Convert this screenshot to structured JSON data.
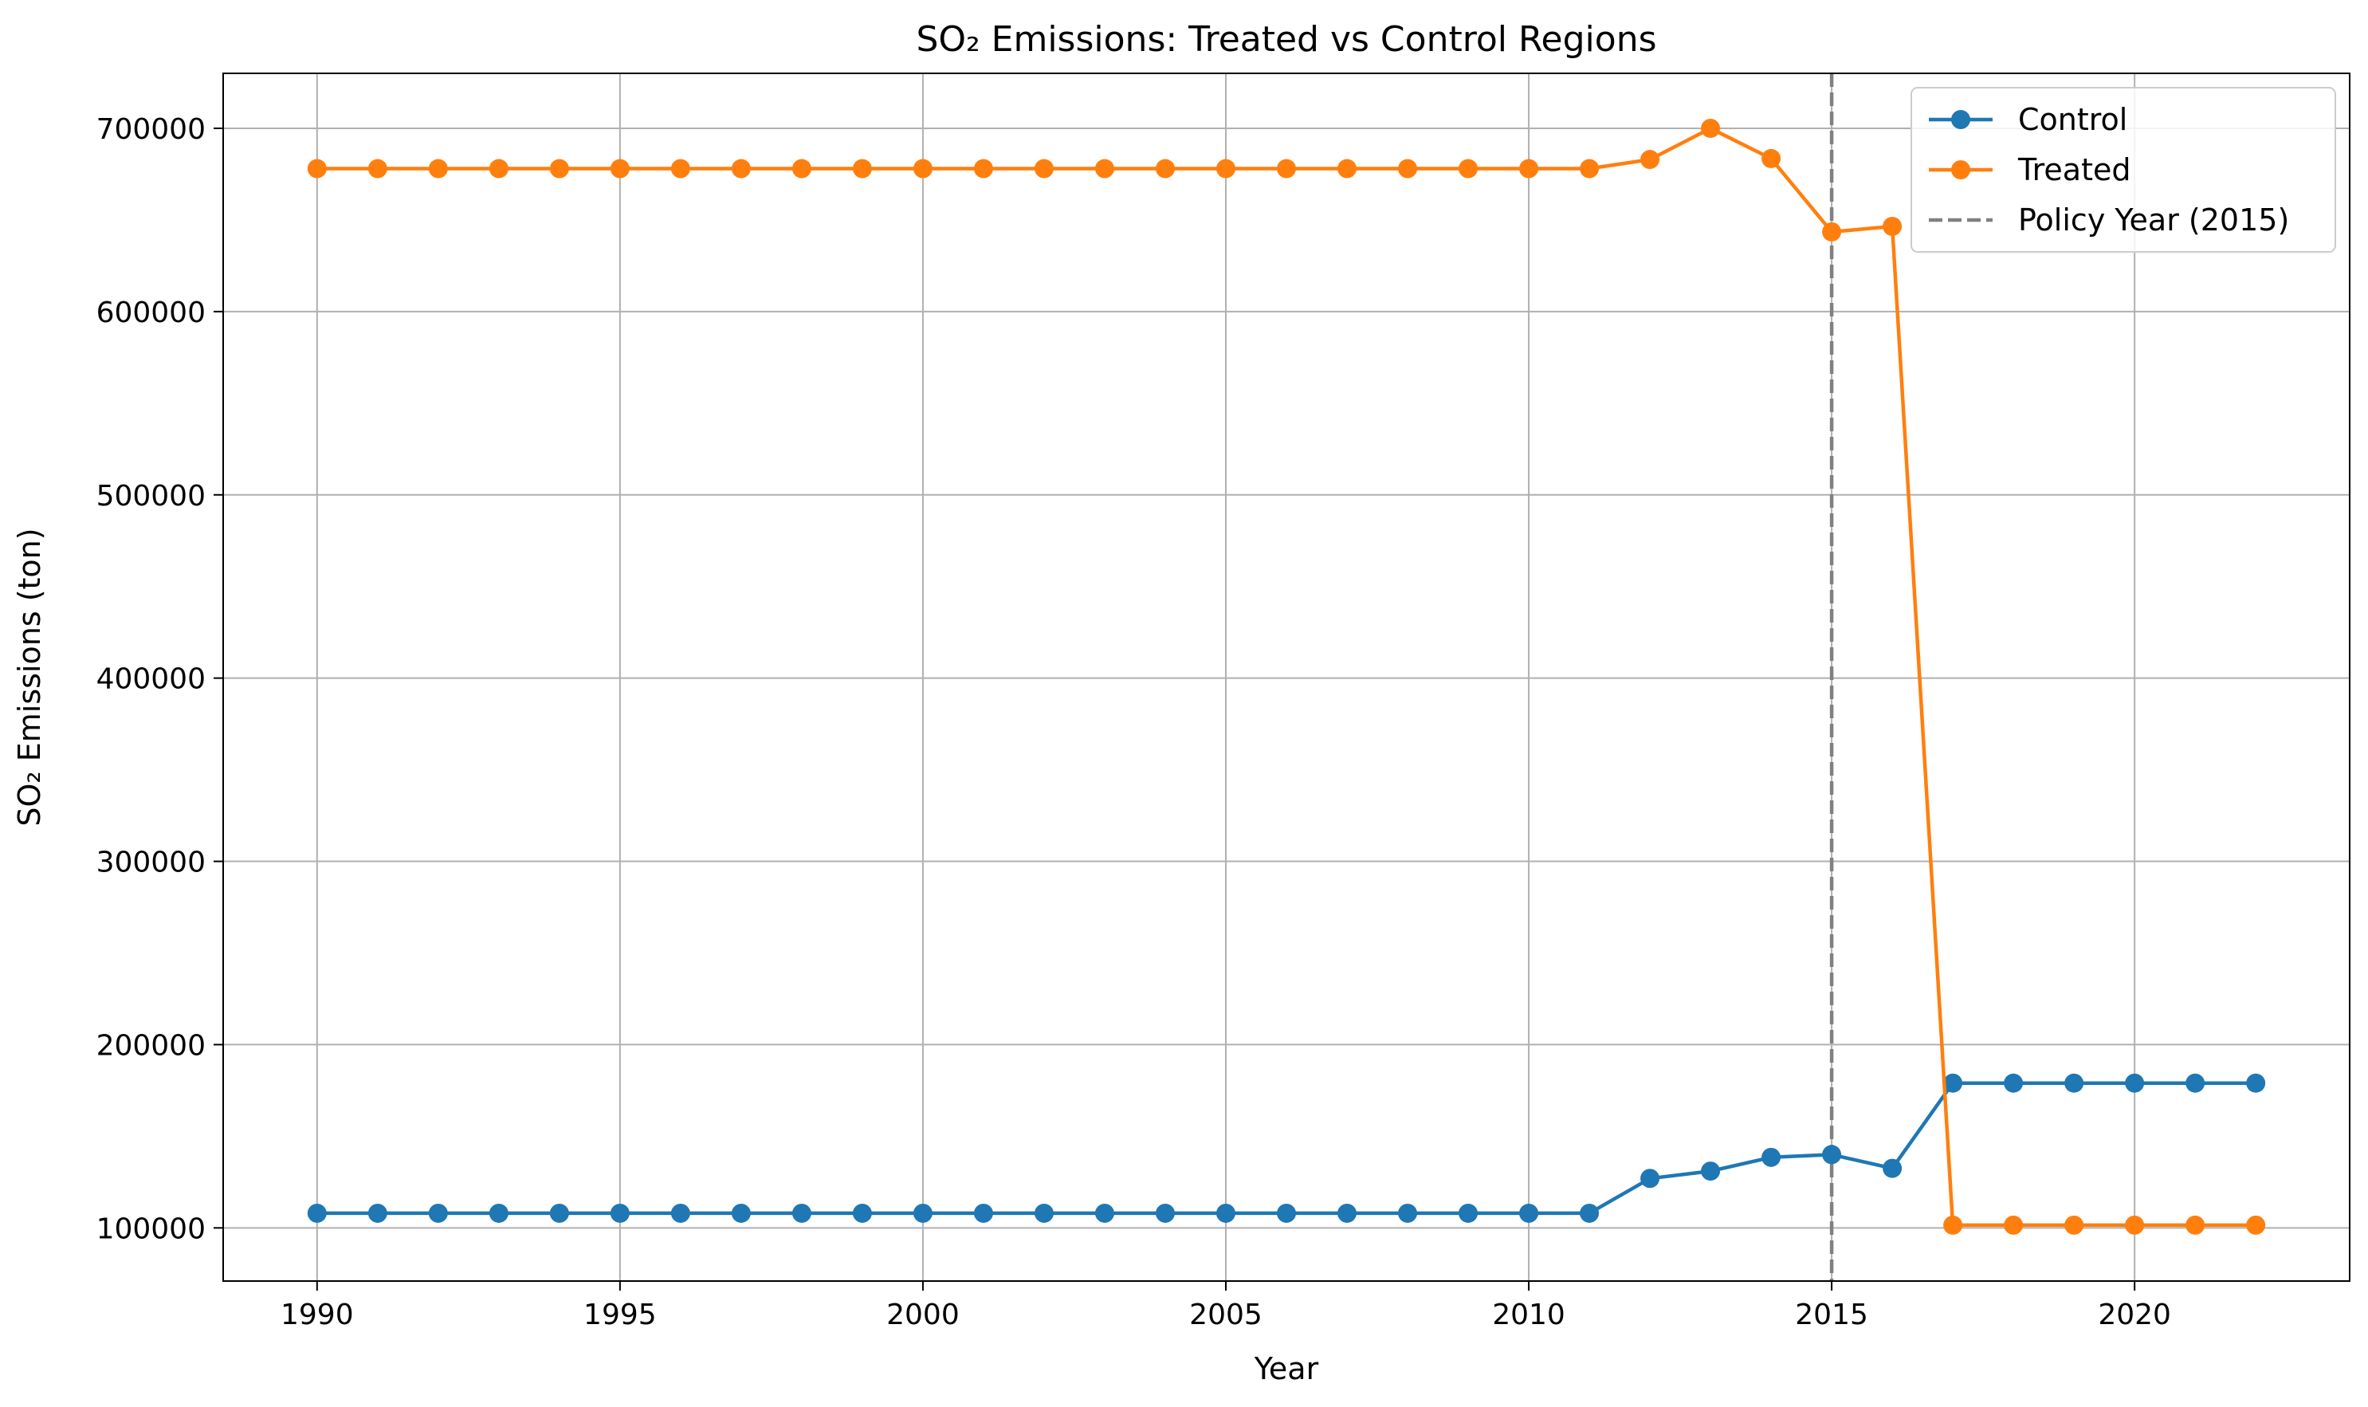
{
  "chart_data": {
    "type": "line",
    "title": "SO₂ Emissions: Treated vs Control Regions",
    "xlabel": "Year",
    "ylabel": "SO₂ Emissions (ton)",
    "xlim": [
      1988.45,
      2023.55
    ],
    "ylim": [
      71000,
      730000
    ],
    "xticks": [
      1990,
      1995,
      2000,
      2005,
      2010,
      2015,
      2020
    ],
    "yticks": [
      100000,
      200000,
      300000,
      400000,
      500000,
      600000,
      700000
    ],
    "grid": true,
    "legend_position": "top-right",
    "x": [
      1990,
      1991,
      1992,
      1993,
      1994,
      1995,
      1996,
      1997,
      1998,
      1999,
      2000,
      2001,
      2002,
      2003,
      2004,
      2005,
      2006,
      2007,
      2008,
      2009,
      2010,
      2011,
      2012,
      2013,
      2014,
      2015,
      2016,
      2017,
      2018,
      2019,
      2020,
      2021,
      2022
    ],
    "series": [
      {
        "name": "Control",
        "color": "#1f77b4",
        "values": [
          108000,
          108000,
          108000,
          108000,
          108000,
          108000,
          108000,
          108000,
          108000,
          108000,
          108000,
          108000,
          108000,
          108000,
          108000,
          108000,
          108000,
          108000,
          108000,
          108000,
          108000,
          108000,
          127000,
          131000,
          138500,
          140000,
          132500,
          179000,
          179000,
          179000,
          179000,
          179000,
          179000
        ]
      },
      {
        "name": "Treated",
        "color": "#ff7f0e",
        "values": [
          678000,
          678000,
          678000,
          678000,
          678000,
          678000,
          678000,
          678000,
          678000,
          678000,
          678000,
          678000,
          678000,
          678000,
          678000,
          678000,
          678000,
          678000,
          678000,
          678000,
          678000,
          678000,
          683000,
          700000,
          683500,
          643500,
          646500,
          101500,
          101500,
          101500,
          101500,
          101500,
          101500
        ]
      }
    ],
    "reference_lines": [
      {
        "axis": "x",
        "value": 2015,
        "label": "Policy Year (2015)",
        "color": "#808080",
        "style": "dashed"
      }
    ]
  }
}
